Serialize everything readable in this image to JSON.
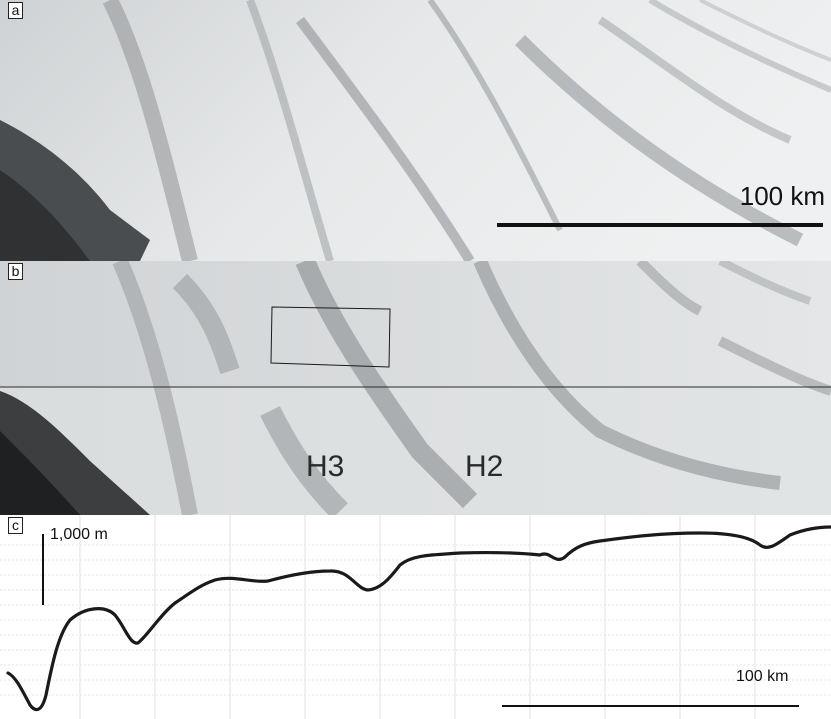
{
  "panels": {
    "a": {
      "letter": "a",
      "scale_label": "100 km"
    },
    "b": {
      "letter": "b",
      "labels": [
        "H3",
        "H2"
      ]
    },
    "c": {
      "letter": "c",
      "vertical_scale_label": "1,000 m",
      "scale_label": "100 km"
    }
  },
  "colors": {
    "ice_light": "#e9ebec",
    "streak": "#9a9d9f",
    "rock_dark": "#3a3c3e",
    "profile_line": "#1a1a1a"
  }
}
